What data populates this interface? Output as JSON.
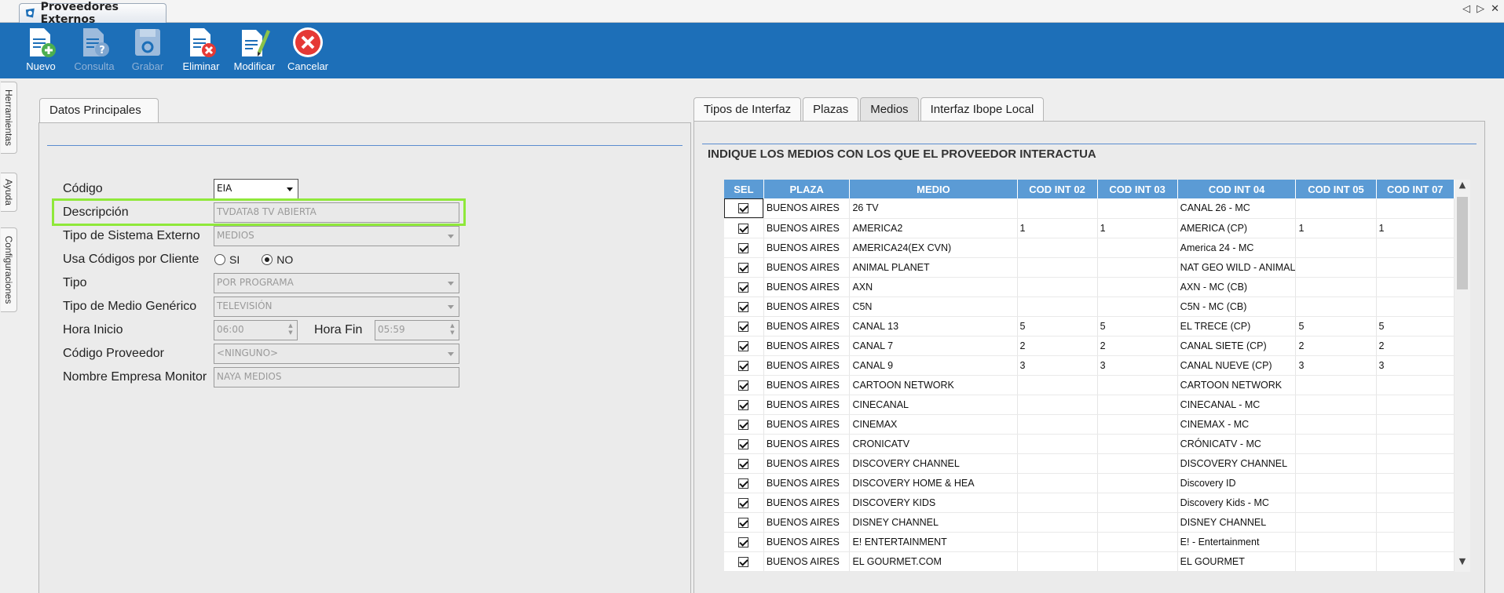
{
  "window": {
    "tab_title": "Proveedores Externos",
    "controls": [
      "◁",
      "▷",
      "✕"
    ]
  },
  "toolbar": {
    "buttons": [
      {
        "label": "Nuevo",
        "icon": "new-document-icon",
        "enabled": true
      },
      {
        "label": "Consulta",
        "icon": "query-document-icon",
        "enabled": false
      },
      {
        "label": "Grabar",
        "icon": "save-disk-icon",
        "enabled": false
      },
      {
        "label": "Eliminar",
        "icon": "delete-document-icon",
        "enabled": true
      },
      {
        "label": "Modificar",
        "icon": "edit-document-icon",
        "enabled": true
      },
      {
        "label": "Cancelar",
        "icon": "cancel-icon",
        "enabled": true
      }
    ]
  },
  "sidebar": {
    "tabs": [
      "Herramientas",
      "Ayuda",
      "Configuraciones"
    ]
  },
  "left_panel": {
    "tab": "Datos Principales",
    "fields": {
      "codigo": {
        "label": "Código",
        "value": "EIA"
      },
      "descripcion": {
        "label": "Descripción",
        "value": "TVDATA8 TV ABIERTA"
      },
      "tipo_sistema": {
        "label": "Tipo de Sistema Externo",
        "value": "MEDIOS"
      },
      "usa_codigos": {
        "label": "Usa Códigos por Cliente",
        "opt_si": "SI",
        "opt_no": "NO",
        "selected": "NO"
      },
      "tipo": {
        "label": "Tipo",
        "value": "POR PROGRAMA"
      },
      "tipo_medio": {
        "label": "Tipo de Medio Genérico",
        "value": "TELEVISIÓN"
      },
      "hora_inicio": {
        "label": "Hora Inicio",
        "value": "06:00"
      },
      "hora_fin": {
        "label": "Hora Fin",
        "value": "05:59"
      },
      "codigo_proveedor": {
        "label": "Código Proveedor",
        "value": "<NINGUNO>"
      },
      "nombre_empresa": {
        "label": "Nombre Empresa Monitor",
        "value": "NAYA MEDIOS"
      }
    }
  },
  "right_panel": {
    "tabs": [
      "Tipos de Interfaz",
      "Plazas",
      "Medios",
      "Interfaz Ibope Local"
    ],
    "active_tab": "Medios",
    "title": "INDIQUE LOS MEDIOS CON LOS QUE EL PROVEEDOR INTERACTUA",
    "columns": [
      "SEL",
      "PLAZA",
      "MEDIO",
      "COD INT 02",
      "COD INT 03",
      "COD INT 04",
      "COD INT 05",
      "COD INT 07"
    ],
    "rows": [
      [
        "BUENOS AIRES",
        "26 TV",
        "",
        "",
        "CANAL 26 - MC",
        "",
        ""
      ],
      [
        "BUENOS AIRES",
        "AMERICA2",
        "1",
        "1",
        "AMERICA (CP)",
        "1",
        "1"
      ],
      [
        "BUENOS AIRES",
        "AMERICA24(EX CVN)",
        "",
        "",
        "America 24 - MC",
        "",
        ""
      ],
      [
        "BUENOS AIRES",
        "ANIMAL PLANET",
        "",
        "",
        "NAT GEO WILD - ANIMAL",
        "",
        ""
      ],
      [
        "BUENOS AIRES",
        "AXN",
        "",
        "",
        "AXN - MC (CB)",
        "",
        ""
      ],
      [
        "BUENOS AIRES",
        "C5N",
        "",
        "",
        "C5N - MC (CB)",
        "",
        ""
      ],
      [
        "BUENOS AIRES",
        "CANAL 13",
        "5",
        "5",
        "EL TRECE (CP)",
        "5",
        "5"
      ],
      [
        "BUENOS AIRES",
        "CANAL 7",
        "2",
        "2",
        "CANAL SIETE (CP)",
        "2",
        "2"
      ],
      [
        "BUENOS AIRES",
        "CANAL 9",
        "3",
        "3",
        "CANAL NUEVE (CP)",
        "3",
        "3"
      ],
      [
        "BUENOS AIRES",
        "CARTOON NETWORK",
        "",
        "",
        "CARTOON NETWORK",
        "",
        ""
      ],
      [
        "BUENOS AIRES",
        "CINECANAL",
        "",
        "",
        "CINECANAL - MC",
        "",
        ""
      ],
      [
        "BUENOS AIRES",
        "CINEMAX",
        "",
        "",
        "CINEMAX - MC",
        "",
        ""
      ],
      [
        "BUENOS AIRES",
        "CRONICATV",
        "",
        "",
        "CRÓNICATV - MC",
        "",
        ""
      ],
      [
        "BUENOS AIRES",
        "DISCOVERY CHANNEL",
        "",
        "",
        "DISCOVERY CHANNEL",
        "",
        ""
      ],
      [
        "BUENOS AIRES",
        "DISCOVERY HOME & HEA",
        "",
        "",
        "Discovery ID",
        "",
        ""
      ],
      [
        "BUENOS AIRES",
        "DISCOVERY KIDS",
        "",
        "",
        "Discovery Kids - MC",
        "",
        ""
      ],
      [
        "BUENOS AIRES",
        "DISNEY CHANNEL",
        "",
        "",
        "DISNEY CHANNEL",
        "",
        ""
      ],
      [
        "BUENOS AIRES",
        "E! ENTERTAINMENT",
        "",
        "",
        "E! - Entertainment",
        "",
        ""
      ],
      [
        "BUENOS AIRES",
        "EL GOURMET.COM",
        "",
        "",
        "EL GOURMET",
        "",
        ""
      ]
    ]
  },
  "colors": {
    "toolbar": "#1d6fb8",
    "grid_header": "#5b9bd5",
    "highlight": "#8fe83a"
  }
}
